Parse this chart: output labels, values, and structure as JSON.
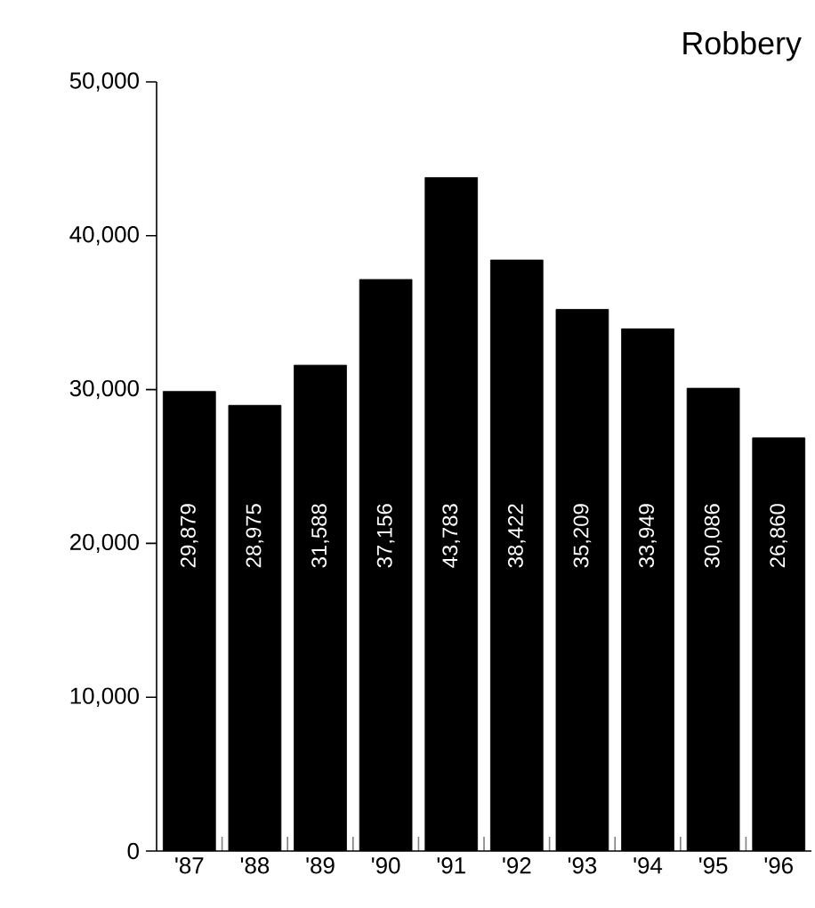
{
  "chart_data": {
    "type": "bar",
    "title": "Robbery",
    "categories": [
      "'87",
      "'88",
      "'89",
      "'90",
      "'91",
      "'92",
      "'93",
      "'94",
      "'95",
      "'96"
    ],
    "values": [
      29879,
      28975,
      31588,
      37156,
      43783,
      38422,
      35209,
      33949,
      30086,
      26860
    ],
    "value_labels": [
      "29,879",
      "28,975",
      "31,588",
      "37,156",
      "43,783",
      "38,422",
      "35,209",
      "33,949",
      "30,086",
      "26,860"
    ],
    "color": "#000000",
    "ylim": [
      0,
      50000
    ],
    "yticks": [
      {
        "value": 0,
        "label": "0"
      },
      {
        "value": 10000,
        "label": "10,000"
      },
      {
        "value": 20000,
        "label": "20,000"
      },
      {
        "value": 30000,
        "label": "30,000"
      },
      {
        "value": 40000,
        "label": "40,000"
      },
      {
        "value": 50000,
        "label": "50,000"
      }
    ],
    "grid": false
  }
}
